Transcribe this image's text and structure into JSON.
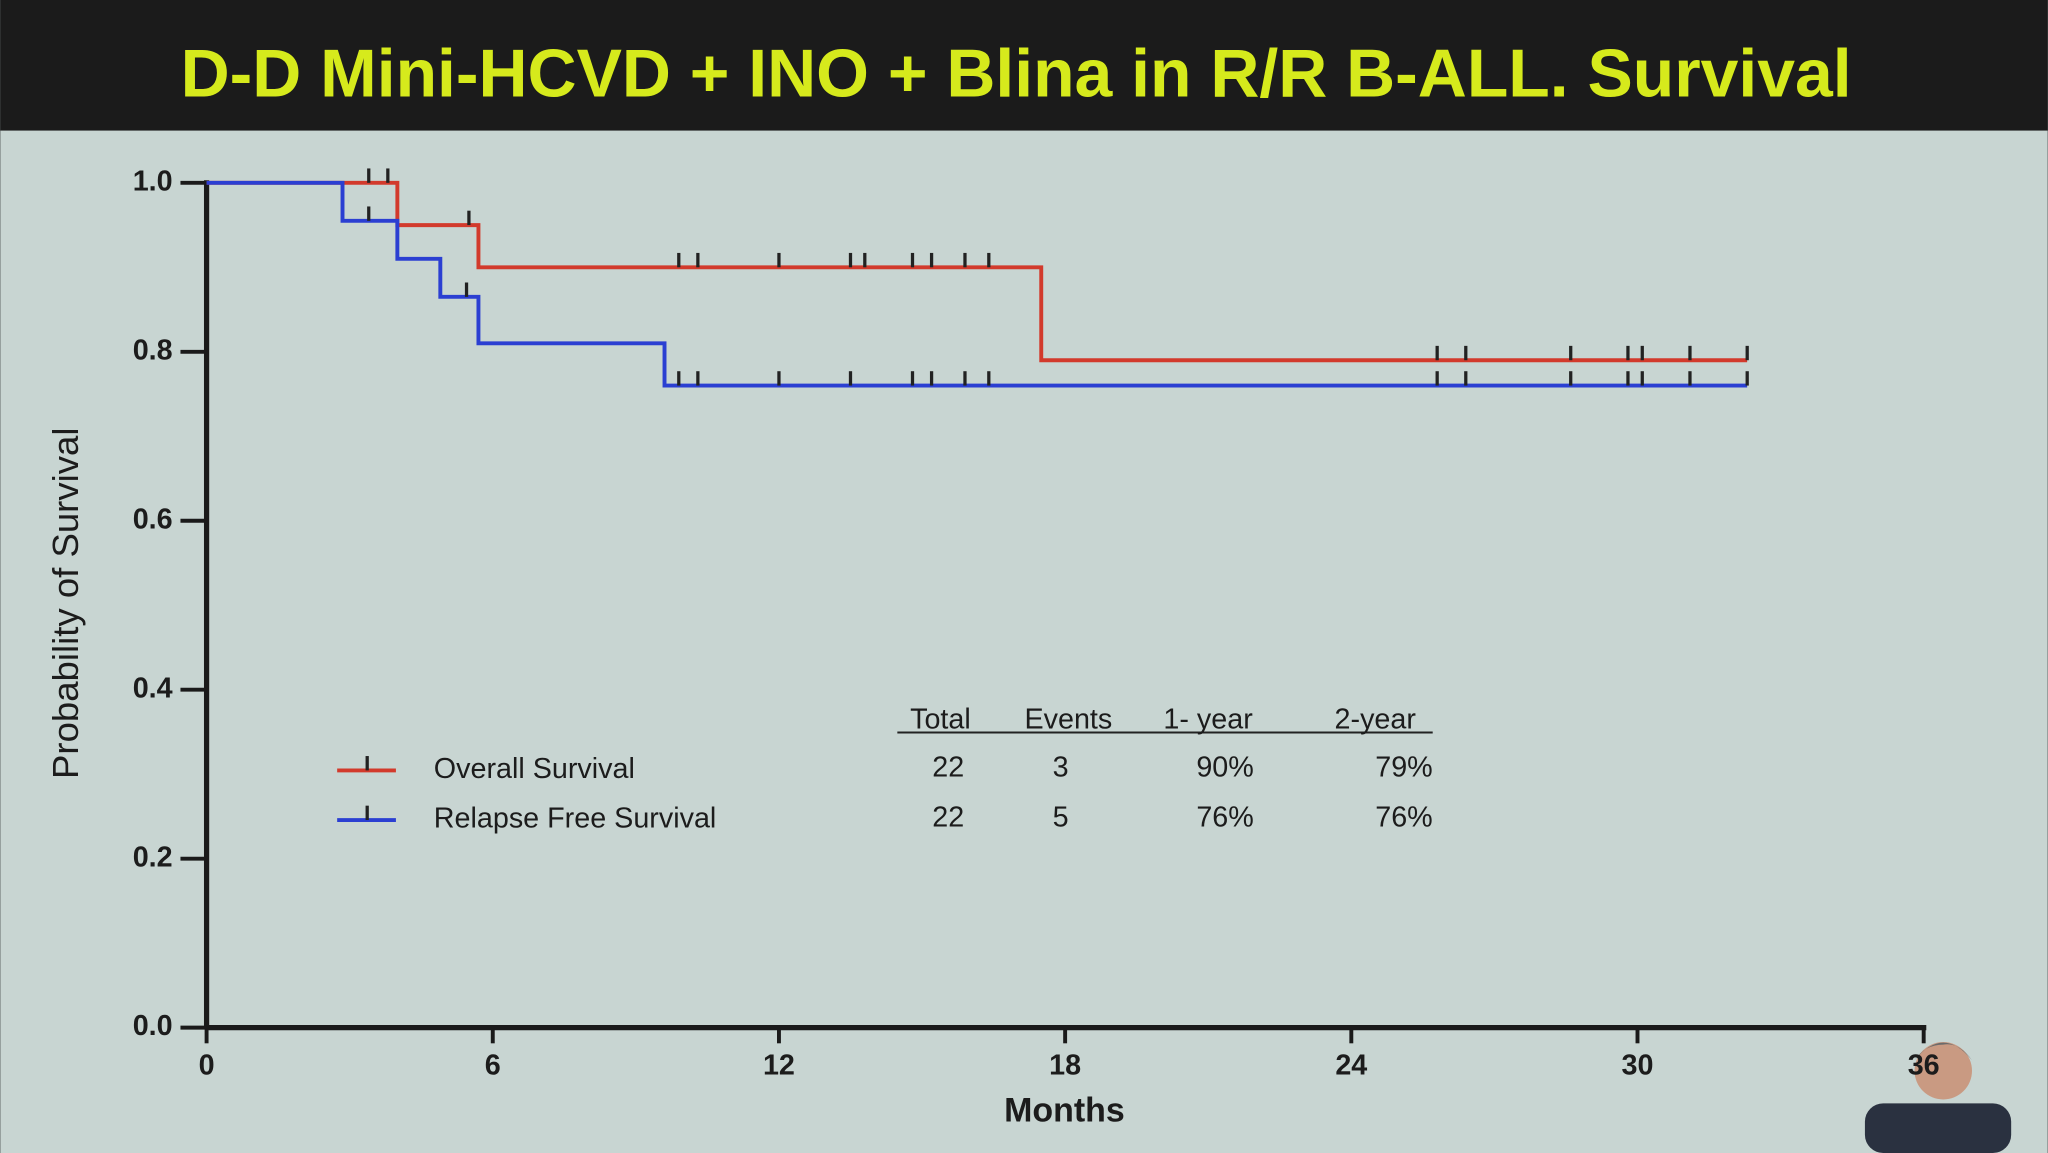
{
  "chart_data": {
    "type": "step",
    "title": "D-D Mini-HCVD + INO + Blina in R/R B-ALL. Survival",
    "x_label": "Months",
    "y_label": "Probability of Survival",
    "xlim": [
      0,
      36
    ],
    "xticks": [
      0,
      6,
      12,
      18,
      24,
      30,
      36
    ],
    "ylim": [
      0,
      1
    ],
    "yticks": [
      {
        "value": 0,
        "label": "0.0"
      },
      0.2,
      0.4,
      0.6,
      0.8,
      {
        "value": 1,
        "label": "1.0"
      }
    ],
    "series": [
      {
        "name": "Overall Survival",
        "color": "#d23a2c",
        "x": [
          0,
          4.0,
          5.7,
          17.5,
          32.3
        ],
        "values": [
          1.0,
          0.95,
          0.9,
          0.79,
          0.79
        ],
        "censored": {
          "x": [
            3.4,
            3.8,
            5.5,
            9.9,
            10.3,
            12.0,
            13.5,
            13.8,
            14.8,
            15.2,
            15.9,
            16.4,
            25.8,
            26.4,
            28.6,
            29.8,
            30.1,
            31.1,
            32.3
          ],
          "values": [
            1.0,
            1.0,
            0.95,
            0.9,
            0.9,
            0.9,
            0.9,
            0.9,
            0.9,
            0.9,
            0.9,
            0.9,
            0.79,
            0.79,
            0.79,
            0.79,
            0.79,
            0.79,
            0.79
          ]
        }
      },
      {
        "name": "Relapse Free Survival",
        "color": "#2b3fd2",
        "x": [
          0,
          2.85,
          4.0,
          4.9,
          5.7,
          9.6,
          32.3
        ],
        "values": [
          1.0,
          0.955,
          0.91,
          0.865,
          0.81,
          0.76,
          0.76
        ],
        "censored": {
          "x": [
            3.4,
            5.45,
            9.9,
            10.3,
            12.0,
            13.5,
            14.8,
            15.2,
            15.9,
            16.4,
            25.8,
            26.4,
            28.6,
            29.8,
            30.1,
            31.1,
            32.3
          ],
          "values": [
            0.955,
            0.865,
            0.76,
            0.76,
            0.76,
            0.76,
            0.76,
            0.76,
            0.76,
            0.76,
            0.76,
            0.76,
            0.76,
            0.76,
            0.76,
            0.76,
            0.76
          ]
        }
      }
    ],
    "table": {
      "columns": [
        "Total",
        "Events",
        "1- year",
        "2-year"
      ],
      "rows": [
        [
          "22",
          "3",
          "90%",
          "79%"
        ],
        [
          "22",
          "5",
          "76%",
          "76%"
        ]
      ]
    }
  }
}
